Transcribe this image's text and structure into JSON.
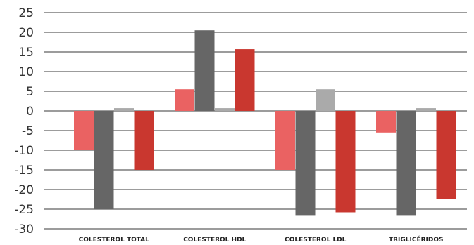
{
  "chart_data": {
    "type": "bar",
    "categories": [
      "COLESTEROL TOTAL",
      "COLESTEROL HDL",
      "COLESTEROL LDL",
      "TRIGLICÉRIDOS"
    ],
    "series": [
      {
        "values": [
          -10,
          5.5,
          -15,
          -5.5
        ],
        "color": "#ea6262"
      },
      {
        "values": [
          -25,
          20.5,
          -26.5,
          -26.5
        ],
        "color": "#666666"
      },
      {
        "values": [
          0.7,
          0.7,
          5.5,
          0.7
        ],
        "color": "#aaaaaa"
      },
      {
        "values": [
          -15,
          15.7,
          -25.8,
          -22.5
        ],
        "color": "#c9372f"
      }
    ],
    "yticks": [
      "25",
      "20",
      "15",
      "10",
      "5",
      "0",
      "-5",
      "-10",
      "-15",
      "-20",
      "-25",
      "-30"
    ],
    "ylim": [
      -30,
      25
    ],
    "grid": true,
    "legend": "none",
    "title": "",
    "xlabel": "",
    "ylabel": ""
  }
}
